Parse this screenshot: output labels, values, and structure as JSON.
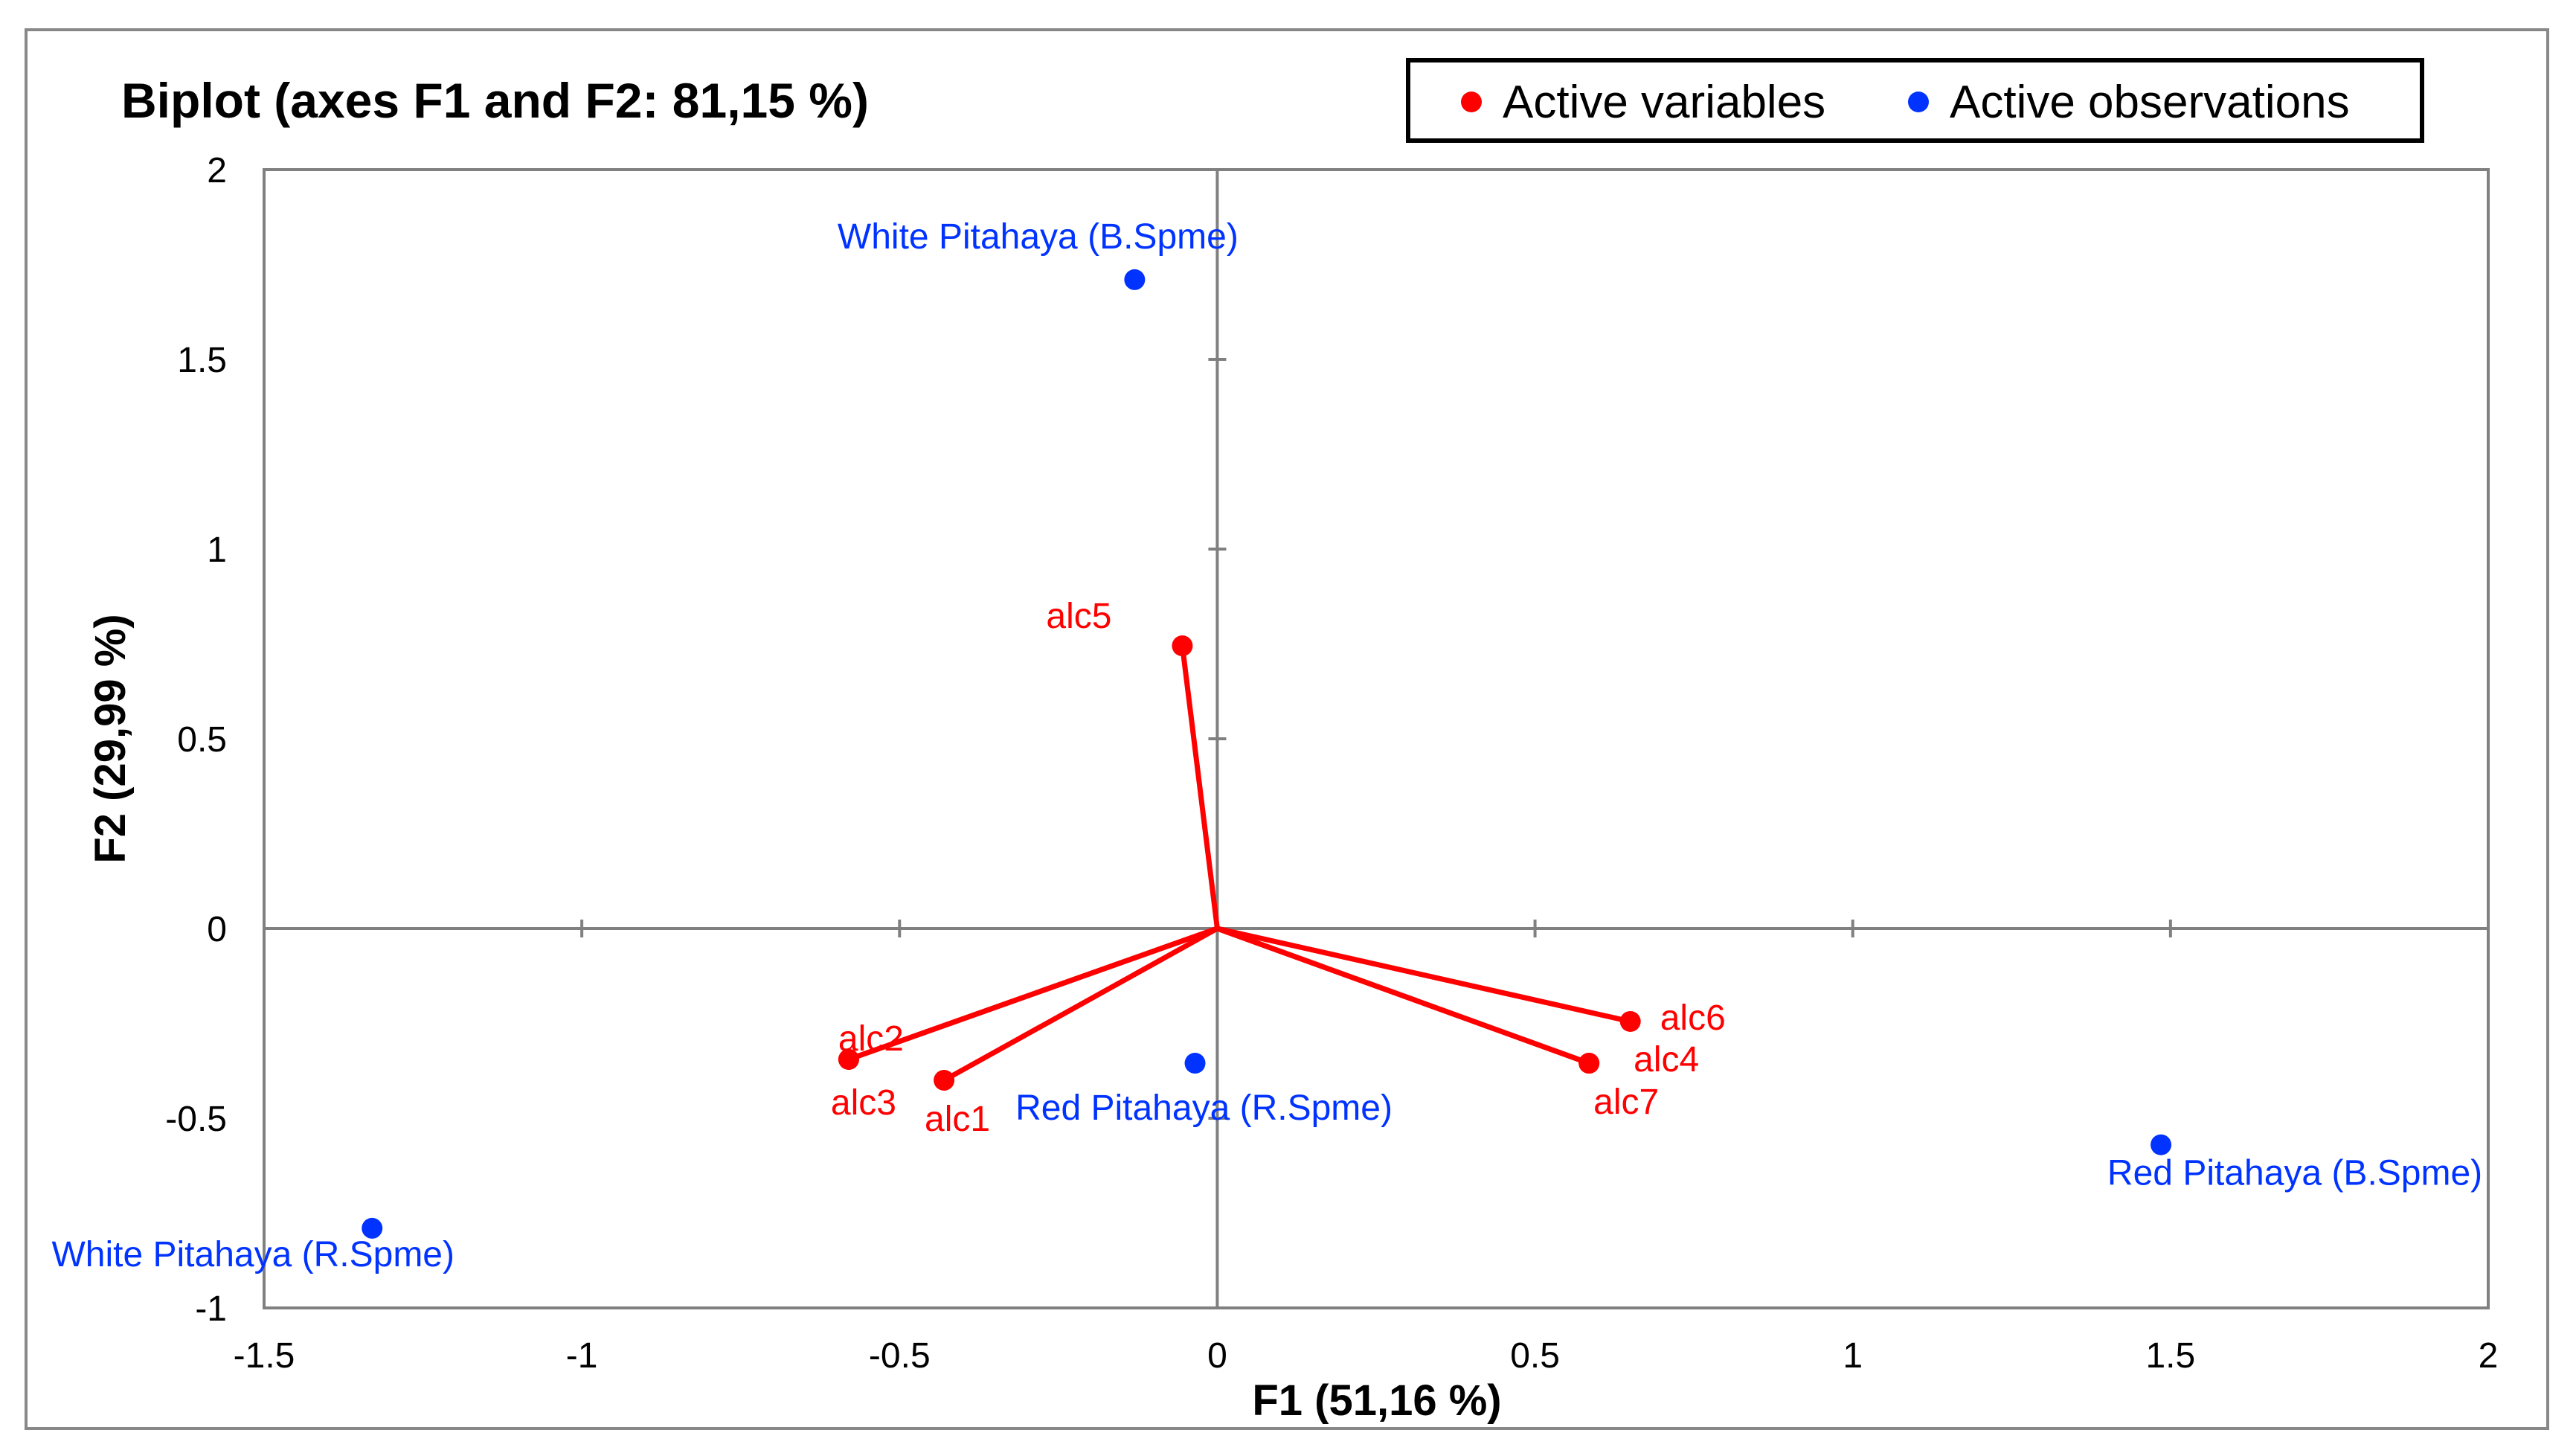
{
  "chart_data": {
    "type": "scatter",
    "title": "Biplot (axes F1 and F2: 81,15 %)",
    "xlabel": "F1 (51,16 %)",
    "ylabel": "F2 (29,99 %)",
    "xlim": [
      -1.5,
      2
    ],
    "ylim": [
      -1,
      2
    ],
    "x_ticks": [
      -1.5,
      -1,
      -0.5,
      0,
      0.5,
      1,
      1.5,
      2
    ],
    "y_ticks": [
      -1,
      -0.5,
      0,
      0.5,
      1,
      1.5,
      2
    ],
    "x_tick_labels": [
      "-1.5",
      "-1",
      "-0.5",
      "0",
      "0.5",
      "1",
      "1.5",
      "2"
    ],
    "y_tick_labels": [
      "-1",
      "-0.5",
      "0",
      "0.5",
      "1",
      "1.5",
      "2"
    ],
    "grid": false,
    "legend_position": "top-right",
    "legend": [
      "Active variables",
      "Active observations"
    ],
    "colors": {
      "variables": "#ff0000",
      "observations": "#0033ff",
      "axis": "#808080",
      "frame": "#808080"
    },
    "series": [
      {
        "name": "Active variables",
        "kind": "vectors",
        "points": [
          {
            "label": "alc1",
            "x": -0.43,
            "y": -0.4,
            "label_side": "below"
          },
          {
            "label": "alc2",
            "x": -0.58,
            "y": -0.345,
            "label_side": "above"
          },
          {
            "label": "alc3",
            "x": -0.58,
            "y": -0.345,
            "label_side": "below"
          },
          {
            "label": "alc4",
            "x": 0.585,
            "y": -0.355,
            "label_side": "right"
          },
          {
            "label": "alc5",
            "x": -0.055,
            "y": 0.745,
            "label_side": "above-left"
          },
          {
            "label": "alc6",
            "x": 0.65,
            "y": -0.245,
            "label_side": "right"
          },
          {
            "label": "alc7",
            "x": 0.585,
            "y": -0.355,
            "label_side": "below"
          }
        ]
      },
      {
        "name": "Active observations",
        "kind": "points",
        "points": [
          {
            "label": "White Pitahaya (B.Spme)",
            "x": -0.13,
            "y": 1.71,
            "label_side": "above-left"
          },
          {
            "label": "Red Pitahaya (R.Spme)",
            "x": -0.035,
            "y": -0.355,
            "label_side": "below"
          },
          {
            "label": "Red Pitahaya (B.Spme)",
            "x": 1.485,
            "y": -0.57,
            "label_side": "below"
          },
          {
            "label": "White Pitahaya (R.Spme)",
            "x": -1.33,
            "y": -0.79,
            "label_side": "below-left"
          }
        ]
      }
    ]
  }
}
